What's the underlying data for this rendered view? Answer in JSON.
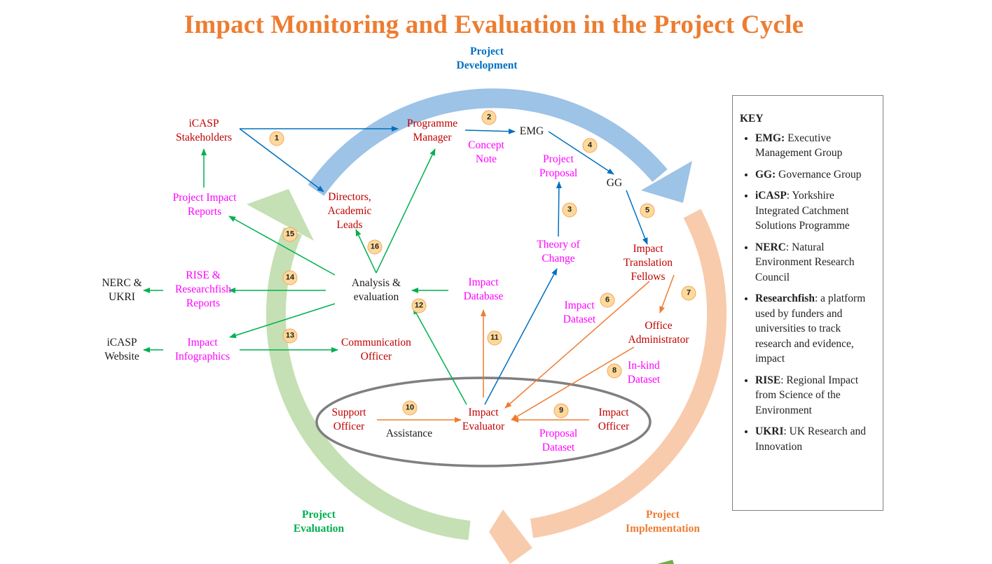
{
  "title": "Impact Monitoring and Evaluation in the Project Cycle",
  "phases": {
    "development": "Project\nDevelopment",
    "implementation": "Project\nImplementation",
    "evaluation": "Project\nEvaluation"
  },
  "nodes": {
    "icasp_stakeholders": "iCASP\nStakeholders",
    "programme_manager": "Programme\nManager",
    "emg": "EMG",
    "concept_note": "Concept\nNote",
    "project_proposal": "Project\nProposal",
    "gg": "GG",
    "project_impact_reports": "Project Impact\nReports",
    "directors": "Directors,\nAcademic\nLeads",
    "theory_of_change": "Theory of\nChange",
    "itf": "Impact\nTranslation\nFellows",
    "nerc_ukri": "NERC &\nUKRI",
    "rise_reports": "RISE &\nResearchfish\nReports",
    "analysis": "Analysis &\nevaluation",
    "impact_database": "Impact\nDatabase",
    "impact_dataset": "Impact\nDataset",
    "office_admin": "Office\nAdministrator",
    "icasp_website": "iCASP\nWebsite",
    "impact_infographics": "Impact\nInfographics",
    "communication_officer": "Communication\nOfficer",
    "inkind_dataset": "In-kind\nDataset",
    "support_officer": "Support\nOfficer",
    "assistance": "Assistance",
    "impact_evaluator": "Impact\nEvaluator",
    "impact_officer": "Impact\nOfficer",
    "proposal_dataset": "Proposal\nDataset"
  },
  "steps": [
    "1",
    "2",
    "3",
    "4",
    "5",
    "6",
    "7",
    "8",
    "9",
    "10",
    "11",
    "12",
    "13",
    "14",
    "15",
    "16"
  ],
  "colors": {
    "title": "#ed7d31",
    "development_arc": "#9dc3e6",
    "implementation_arc": "#f8cbad",
    "evaluation_arc": "#c5e0b4",
    "blue_arrow": "#0070c0",
    "green_arrow": "#00b050",
    "orange_arrow": "#ed7d31",
    "role_text": "#c00000",
    "document_text": "#ff00ff"
  },
  "key": {
    "title": "KEY",
    "items": [
      {
        "term": "EMG:",
        "definition": " Executive Management Group"
      },
      {
        "term": "GG:",
        "definition": " Governance Group"
      },
      {
        "term": "iCASP",
        "definition": ": Yorkshire Integrated Catchment Solutions Programme"
      },
      {
        "term": "NERC",
        "definition": ": Natural Environment Research Council"
      },
      {
        "term": "Researchfish",
        "definition": ":  a platform used by funders and universities to track research and evidence, impact"
      },
      {
        "term": "RISE",
        "definition": ": Regional Impact from Science of the Environment"
      },
      {
        "term": "UKRI",
        "definition": ": UK Research and Innovation"
      }
    ]
  }
}
